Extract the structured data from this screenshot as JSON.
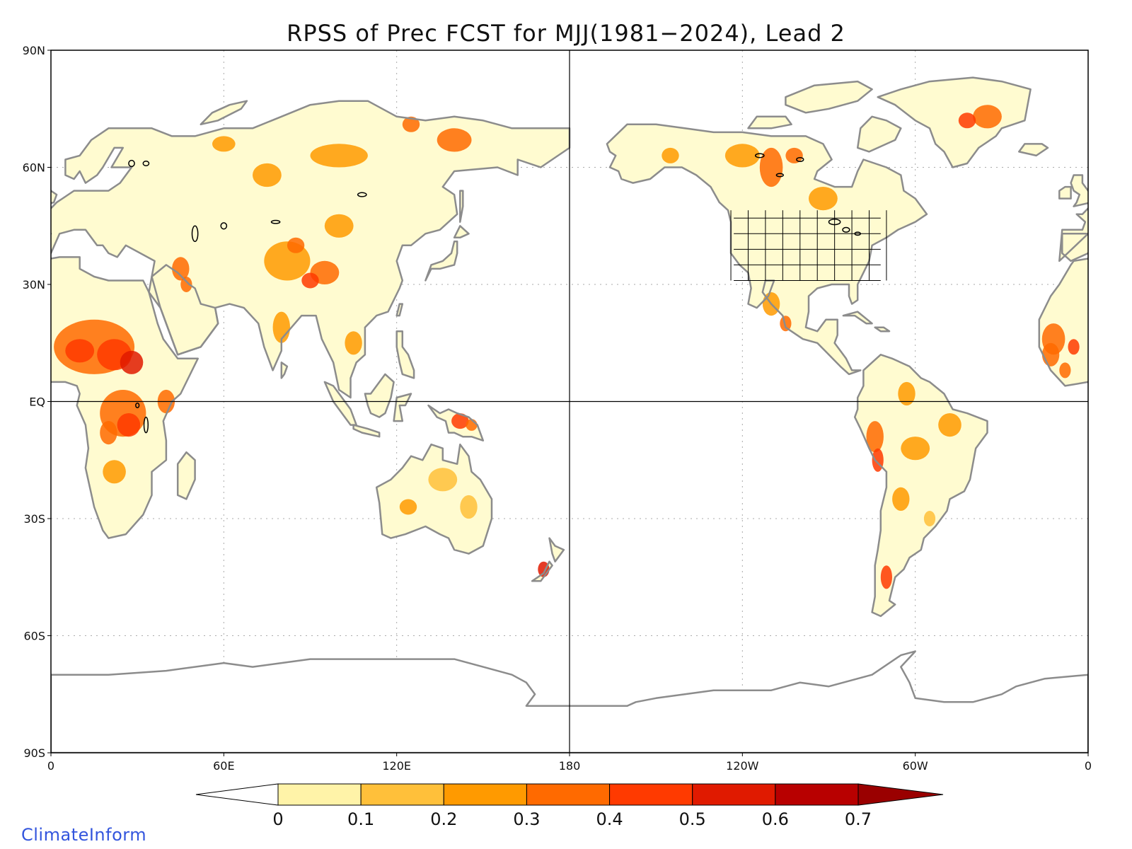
{
  "title": "RPSS of Prec FCST for MJJ(1981−2024), Lead 2",
  "credit": "ClimateInform",
  "map": {
    "projection": "equirectangular",
    "center_longitude": 180,
    "lat_ticks": [
      "90N",
      "60N",
      "30N",
      "EQ",
      "30S",
      "60S",
      "90S"
    ],
    "lon_ticks": [
      "0",
      "60E",
      "120E",
      "180",
      "120W",
      "60W",
      "0"
    ],
    "gridlines": "dotted",
    "coastline_color": "#8c8c8c",
    "lakes_color": "#000000",
    "reference_lines": [
      "EQ",
      "180"
    ]
  },
  "colorbar": {
    "ticks": [
      "0",
      "0.1",
      "0.2",
      "0.3",
      "0.4",
      "0.5",
      "0.6",
      "0.7"
    ],
    "colors": [
      "#ffffff",
      "#fff3a8",
      "#ffc03a",
      "#ff9a00",
      "#ff6a00",
      "#ff3a00",
      "#e01a00",
      "#b80000",
      "#9a0000"
    ],
    "below_color": "#ffffff",
    "above_color": "#9a0000",
    "extend": "both"
  },
  "chart_data": {
    "type": "heatmap",
    "title": "RPSS of Prec FCST for MJJ(1981−2024), Lead 2",
    "variable": "RPSS",
    "ylim": [
      -90,
      90
    ],
    "xlim": [
      0,
      360
    ],
    "color_levels": [
      0,
      0.1,
      0.2,
      0.3,
      0.4,
      0.5,
      0.6,
      0.7
    ],
    "regions": [
      {
        "name": "Sahel",
        "lon": 15,
        "lat": 13,
        "value": 0.45
      },
      {
        "name": "Central Africa",
        "lon": 25,
        "lat": -5,
        "value": 0.4
      },
      {
        "name": "Tibetan Plateau",
        "lon": 90,
        "lat": 33,
        "value": 0.35
      },
      {
        "name": "Siberia",
        "lon": 110,
        "lat": 66,
        "value": 0.25
      },
      {
        "name": "Western Canada",
        "lon": 245,
        "lat": 60,
        "value": 0.25
      },
      {
        "name": "Greenland",
        "lon": 320,
        "lat": 75,
        "value": 0.35
      },
      {
        "name": "Andes",
        "lon": 285,
        "lat": -10,
        "value": 0.3
      },
      {
        "name": "New Guinea",
        "lon": 143,
        "lat": -6,
        "value": 0.4
      },
      {
        "name": "Australia",
        "lon": 134,
        "lat": -25,
        "value": 0.1
      },
      {
        "name": "Brazil",
        "lon": 310,
        "lat": -10,
        "value": 0.15
      },
      {
        "name": "New Zealand",
        "lon": 172,
        "lat": -42,
        "value": 0.45
      },
      {
        "name": "Patagonia",
        "lon": 288,
        "lat": -45,
        "value": 0.4
      }
    ]
  }
}
